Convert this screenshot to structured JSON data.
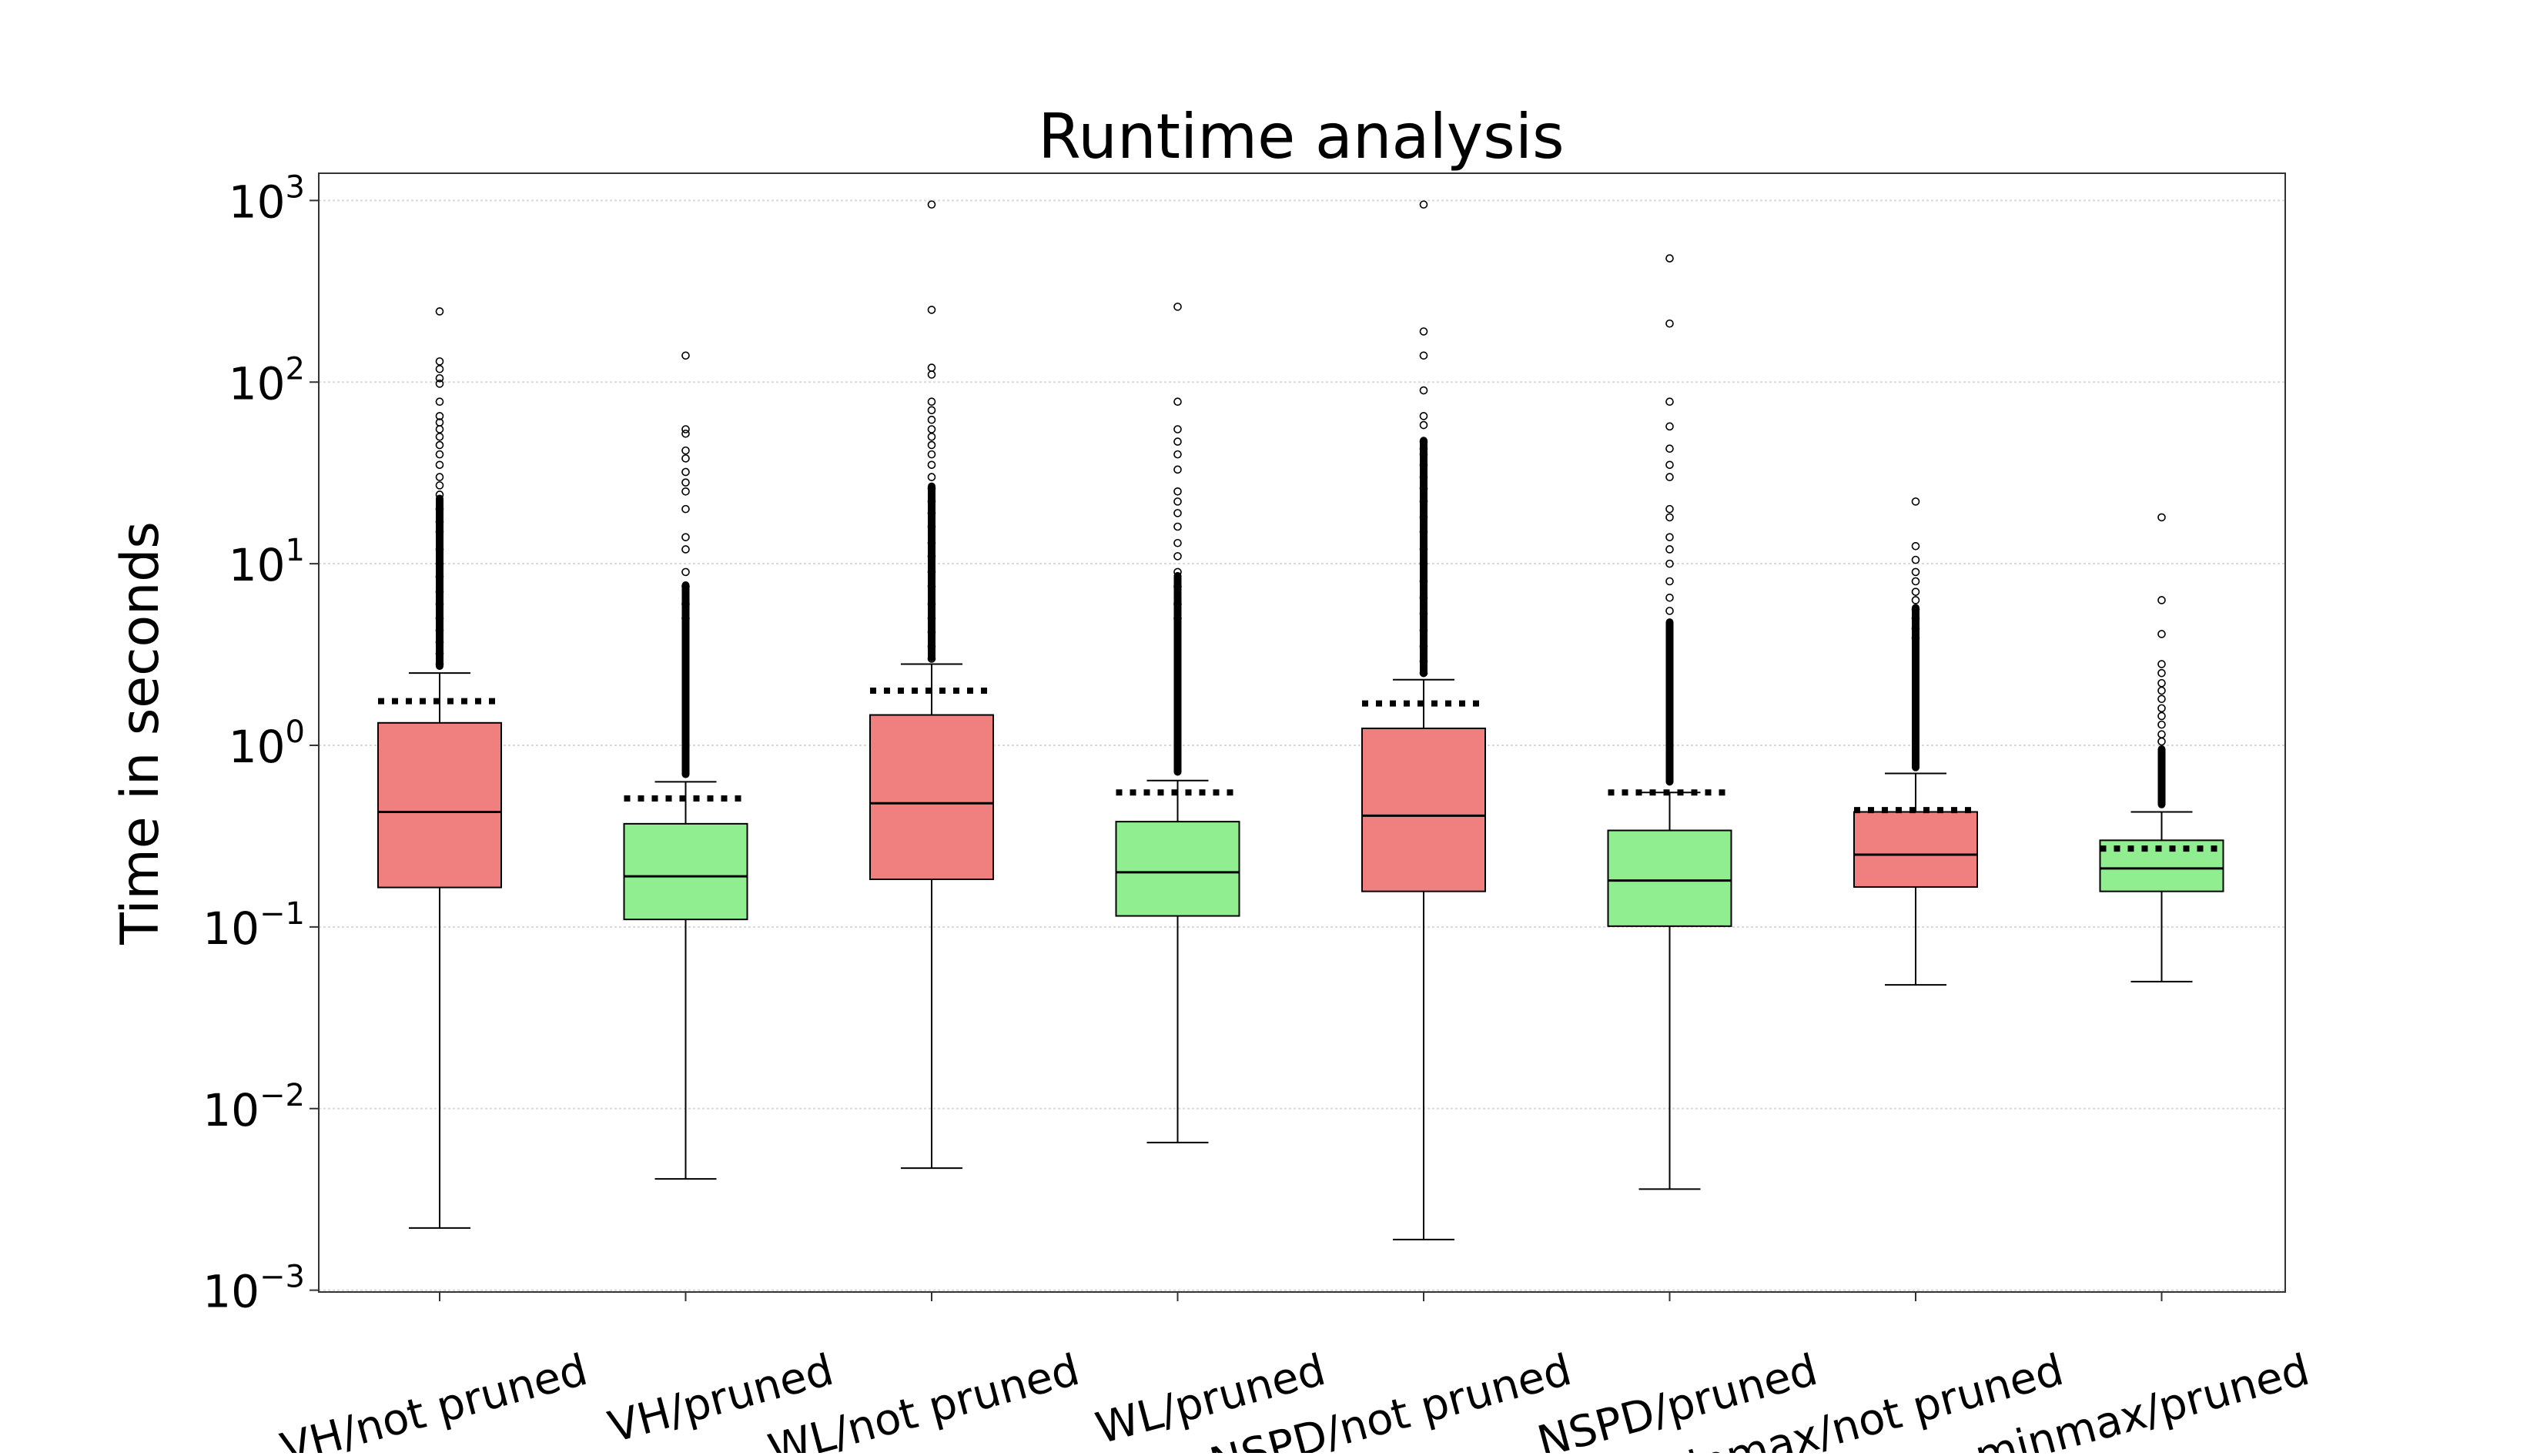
{
  "chart_data": {
    "type": "box",
    "title": "Runtime analysis",
    "xlabel": "",
    "ylabel": "Time in seconds",
    "yscale": "log",
    "ylim": [
      0.001,
      1000
    ],
    "grid": true,
    "y_tick_labels": [
      {
        "base": "10",
        "exp": "−3",
        "value": 0.001
      },
      {
        "base": "10",
        "exp": "−2",
        "value": 0.01
      },
      {
        "base": "10",
        "exp": "−1",
        "value": 0.1
      },
      {
        "base": "10",
        "exp": "0",
        "value": 1
      },
      {
        "base": "10",
        "exp": "1",
        "value": 10
      },
      {
        "base": "10",
        "exp": "2",
        "value": 100
      },
      {
        "base": "10",
        "exp": "3",
        "value": 1000
      }
    ],
    "colors": {
      "not_pruned": "#f08080",
      "pruned": "#90ee90",
      "edge": "#000000",
      "grid": "#d9d9d9"
    },
    "boxes": [
      {
        "label": "VH/not pruned",
        "group": "not_pruned",
        "whisker_low": 0.0022,
        "q1": 0.165,
        "median": 0.43,
        "q3": 1.33,
        "whisker_high": 2.5,
        "mean": 1.75,
        "fliers": [
          245,
          130,
          118,
          105,
          98,
          78,
          65,
          60,
          55,
          50,
          45,
          40,
          35,
          30,
          27,
          24,
          20,
          17,
          15,
          12,
          10,
          8.5,
          7,
          6,
          5,
          4.3,
          3.7,
          3.2,
          2.8
        ],
        "flier_band": [
          2.6,
          24
        ]
      },
      {
        "label": "VH/pruned",
        "group": "pruned",
        "whisker_low": 0.0041,
        "q1": 0.11,
        "median": 0.19,
        "q3": 0.37,
        "whisker_high": 0.63,
        "mean": 0.51,
        "fliers": [
          140,
          55,
          52,
          42,
          38,
          32,
          28,
          25,
          20,
          14,
          12,
          9,
          7.5,
          6,
          5
        ],
        "flier_band": [
          0.66,
          8
        ]
      },
      {
        "label": "WL/not pruned",
        "group": "not_pruned",
        "whisker_low": 0.0047,
        "q1": 0.183,
        "median": 0.48,
        "q3": 1.47,
        "whisker_high": 2.8,
        "mean": 2.0,
        "fliers": [
          950,
          250,
          120,
          110,
          78,
          70,
          62,
          55,
          50,
          45,
          40,
          35,
          30,
          26,
          22,
          19,
          16,
          13,
          11,
          9,
          7.5,
          6,
          5,
          4.2,
          3.5,
          3.0
        ],
        "flier_band": [
          2.9,
          28
        ]
      },
      {
        "label": "WL/pruned",
        "group": "pruned",
        "whisker_low": 0.0065,
        "q1": 0.115,
        "median": 0.2,
        "q3": 0.38,
        "whisker_high": 0.64,
        "mean": 0.55,
        "fliers": [
          260,
          78,
          55,
          47,
          40,
          33,
          25,
          22,
          19,
          16,
          13,
          11,
          9,
          7.5,
          6,
          5
        ],
        "flier_band": [
          0.68,
          9
        ]
      },
      {
        "label": "NSPD/not pruned",
        "group": "not_pruned",
        "whisker_low": 0.0019,
        "q1": 0.157,
        "median": 0.41,
        "q3": 1.24,
        "whisker_high": 2.3,
        "mean": 1.7,
        "fliers": [
          950,
          190,
          140,
          90,
          65,
          58,
          47,
          43,
          40,
          35,
          30,
          26,
          22,
          18,
          15,
          12,
          10,
          8,
          6.5,
          5.3,
          4.3,
          3.5,
          2.9,
          2.5
        ],
        "flier_band": [
          2.4,
          50
        ]
      },
      {
        "label": "NSPD/pruned",
        "group": "pruned",
        "whisker_low": 0.0036,
        "q1": 0.101,
        "median": 0.18,
        "q3": 0.34,
        "whisker_high": 0.55,
        "mean": 0.55,
        "fliers": [
          480,
          210,
          78,
          57,
          43,
          35,
          30,
          20,
          18,
          14,
          12,
          10,
          8,
          6.5,
          5.5
        ],
        "flier_band": [
          0.6,
          5
        ]
      },
      {
        "label": "minmax/not pruned",
        "group": "not_pruned",
        "whisker_low": 0.048,
        "q1": 0.166,
        "median": 0.25,
        "q3": 0.43,
        "whisker_high": 0.7,
        "mean": 0.44,
        "fliers": [
          22,
          12.5,
          10.5,
          9,
          8,
          7,
          6.3,
          5.6,
          5,
          4.4,
          3.9
        ],
        "flier_band": [
          0.72,
          6
        ]
      },
      {
        "label": "minmax/pruned",
        "group": "pruned",
        "whisker_low": 0.05,
        "q1": 0.157,
        "median": 0.21,
        "q3": 0.3,
        "whisker_high": 0.43,
        "mean": 0.27,
        "fliers": [
          18,
          6.3,
          4.1,
          2.8,
          2.5,
          2.2,
          2.0,
          1.8,
          1.6,
          1.45,
          1.3,
          1.15,
          1.05
        ],
        "flier_band": [
          0.45,
          1.0
        ]
      }
    ]
  }
}
